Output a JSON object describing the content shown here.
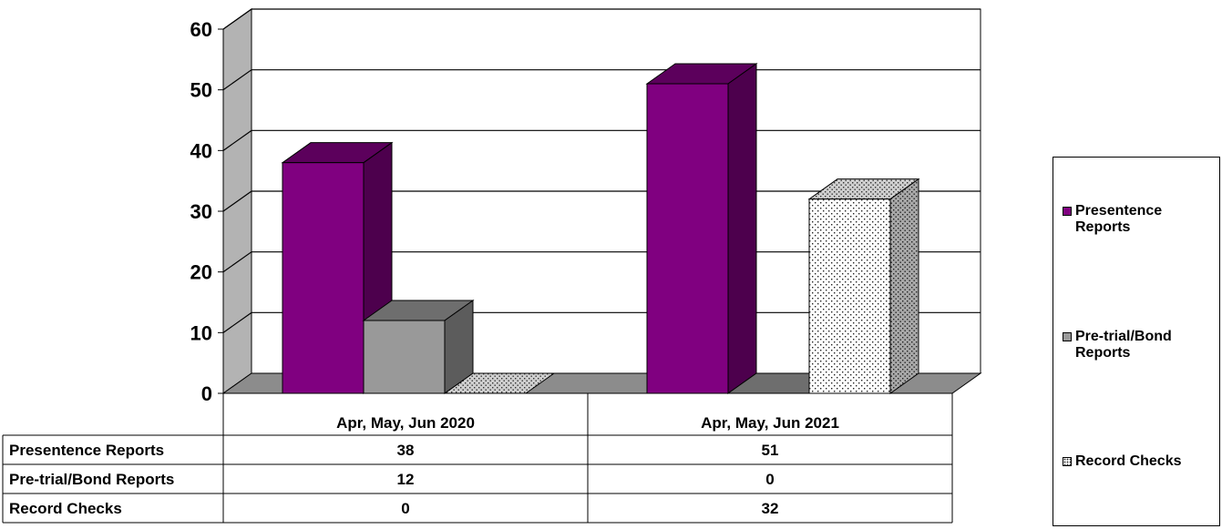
{
  "chart_data": {
    "type": "bar",
    "categories": [
      "Apr, May, Jun 2020",
      "Apr, May, Jun 2021"
    ],
    "series": [
      {
        "name": "Presentence Reports",
        "values": [
          38,
          51
        ],
        "color": "#800080",
        "pattern": "solid"
      },
      {
        "name": "Pre-trial/Bond Reports",
        "values": [
          12,
          0
        ],
        "color": "#999999",
        "pattern": "solid"
      },
      {
        "name": "Record Checks",
        "values": [
          0,
          32
        ],
        "color": "#ffffff",
        "pattern": "dotted"
      }
    ],
    "ylim": [
      0,
      60
    ],
    "yticks": [
      "0",
      "10",
      "20",
      "30",
      "40",
      "50",
      "60"
    ],
    "grid": true,
    "legend_position": "right",
    "data_table": true,
    "style": "3d-clustered-column"
  },
  "legend": {
    "items": [
      {
        "label": "Presentence\nReports"
      },
      {
        "label": "Pre-trial/Bond\nReports"
      },
      {
        "label": "Record Checks"
      }
    ]
  }
}
